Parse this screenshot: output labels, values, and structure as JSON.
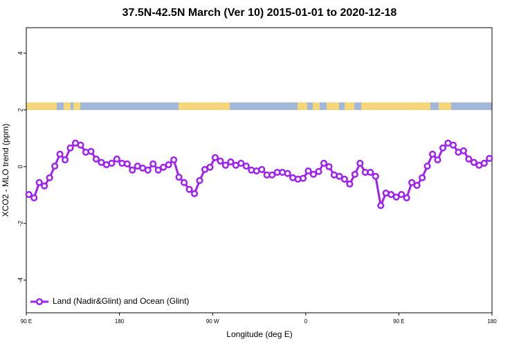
{
  "chart_data": {
    "type": "line",
    "title": "37.5N-42.5N March (Ver 10)   2015-01-01 to 2020-12-18",
    "x_label": "Longitude (deg E)",
    "y_label": "XCO2 - MLO trend (ppm)",
    "x": [
      92.5,
      97.5,
      102.5,
      107.5,
      112.5,
      117.5,
      122.5,
      127.5,
      132.5,
      137.5,
      142.5,
      147.5,
      152.5,
      157.5,
      162.5,
      167.5,
      172.5,
      177.5,
      182.5,
      187.5,
      192.5,
      197.5,
      202.5,
      207.5,
      212.5,
      217.5,
      222.5,
      227.5,
      232.5,
      237.5,
      242.5,
      247.5,
      252.5,
      257.5,
      262.5,
      267.5,
      272.5,
      277.5,
      282.5,
      287.5,
      292.5,
      297.5,
      302.5,
      307.5,
      312.5,
      317.5,
      322.5,
      327.5,
      332.5,
      337.5,
      342.5,
      347.5,
      352.5,
      357.5,
      362.5,
      367.5,
      372.5,
      377.5,
      382.5,
      387.5,
      392.5,
      397.5,
      402.5,
      407.5,
      412.5,
      417.5,
      422.5,
      427.5,
      432.5,
      437.5,
      442.5,
      447.5,
      452.5,
      457.5,
      462.5,
      467.5,
      472.5,
      477.5,
      482.5,
      487.5,
      492.5,
      497.5,
      502.5,
      507.5,
      512.5,
      517.5,
      522.5,
      527.5,
      532.5,
      537.5
    ],
    "series": [
      {
        "name": "Land (Nadir&Glint) and Ocean (Glint)",
        "color": "#a020f0",
        "values": [
          -0.98,
          -1.1,
          -0.56,
          -0.68,
          -0.39,
          0.02,
          0.44,
          0.24,
          0.66,
          0.83,
          0.76,
          0.51,
          0.54,
          0.27,
          0.15,
          0.07,
          0.12,
          0.27,
          0.12,
          0.1,
          -0.12,
          0.02,
          -0.05,
          -0.12,
          0.1,
          -0.12,
          -0.02,
          0.07,
          0.24,
          -0.37,
          -0.56,
          -0.8,
          -0.95,
          -0.49,
          -0.1,
          -0.02,
          0.32,
          0.2,
          0.05,
          0.17,
          0.05,
          0.12,
          0.02,
          -0.12,
          -0.15,
          -0.1,
          -0.29,
          -0.29,
          -0.2,
          -0.2,
          -0.24,
          -0.39,
          -0.44,
          -0.41,
          -0.15,
          -0.27,
          -0.17,
          0.12,
          0,
          -0.29,
          -0.34,
          -0.44,
          -0.61,
          -0.27,
          0.12,
          -0.2,
          -0.2,
          -0.34,
          -1.37,
          -0.93,
          -0.98,
          -1.07,
          -0.98,
          -1.1,
          -0.56,
          -0.66,
          -0.39,
          0.02,
          0.44,
          0.24,
          0.66,
          0.83,
          0.76,
          0.51,
          0.56,
          0.27,
          0.15,
          0.05,
          0.12,
          0.29
        ]
      }
    ],
    "xlim": [
      90,
      540
    ],
    "xticks": [
      {
        "value": 90,
        "label": "90 E"
      },
      180,
      {
        "value": 270,
        "label": "90 W"
      },
      {
        "value": 360,
        "label": "0"
      },
      {
        "value": 450,
        "label": "90 E"
      },
      {
        "value": 540,
        "label": "180"
      }
    ],
    "ylim": [
      -5.15,
      4.9
    ],
    "yticks": [
      4,
      2,
      0,
      -2,
      -4
    ],
    "legend": "bottom left"
  }
}
